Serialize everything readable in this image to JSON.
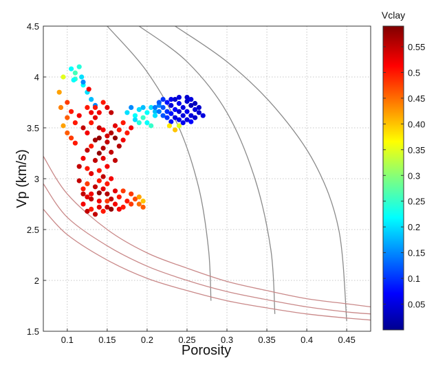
{
  "chart_data": {
    "type": "scatter",
    "xlabel": "Porosity",
    "ylabel": "Vp (km/s)",
    "xlim": [
      0.07,
      0.48
    ],
    "ylim": [
      1.5,
      4.5
    ],
    "x_ticks": [
      "0.1",
      "0.15",
      "0.2",
      "0.25",
      "0.3",
      "0.35",
      "0.4",
      "0.45"
    ],
    "y_ticks": [
      "1.5",
      "2",
      "2.5",
      "3",
      "3.5",
      "4",
      "4.5"
    ],
    "grid": true,
    "colorbar": {
      "title": "Vclay",
      "range": [
        0,
        0.59
      ],
      "ticks": [
        "0.05",
        "0.1",
        "0.15",
        "0.2",
        "0.25",
        "0.3",
        "0.35",
        "0.40",
        "0.45",
        "0.5",
        "0.55"
      ]
    },
    "gray_curves": [
      {
        "points": [
          [
            0.15,
            4.5
          ],
          [
            0.2,
            4.05
          ],
          [
            0.24,
            3.5
          ],
          [
            0.265,
            2.9
          ],
          [
            0.277,
            2.3
          ],
          [
            0.28,
            1.8
          ]
        ]
      },
      {
        "points": [
          [
            0.19,
            4.5
          ],
          [
            0.25,
            4.15
          ],
          [
            0.3,
            3.65
          ],
          [
            0.335,
            3.0
          ],
          [
            0.355,
            2.3
          ],
          [
            0.36,
            1.67
          ]
        ]
      },
      {
        "points": [
          [
            0.235,
            4.5
          ],
          [
            0.3,
            4.15
          ],
          [
            0.36,
            3.7
          ],
          [
            0.41,
            3.15
          ],
          [
            0.44,
            2.5
          ],
          [
            0.45,
            1.6
          ]
        ]
      }
    ],
    "red_curves": [
      {
        "points": [
          [
            0.07,
            3.22
          ],
          [
            0.1,
            2.85
          ],
          [
            0.15,
            2.5
          ],
          [
            0.2,
            2.27
          ],
          [
            0.25,
            2.12
          ],
          [
            0.3,
            1.99
          ],
          [
            0.35,
            1.9
          ],
          [
            0.4,
            1.82
          ],
          [
            0.45,
            1.77
          ],
          [
            0.48,
            1.74
          ]
        ]
      },
      {
        "points": [
          [
            0.07,
            2.95
          ],
          [
            0.1,
            2.62
          ],
          [
            0.15,
            2.34
          ],
          [
            0.2,
            2.14
          ],
          [
            0.25,
            2.0
          ],
          [
            0.3,
            1.89
          ],
          [
            0.35,
            1.81
          ],
          [
            0.4,
            1.74
          ],
          [
            0.45,
            1.69
          ],
          [
            0.48,
            1.67
          ]
        ]
      },
      {
        "points": [
          [
            0.07,
            2.7
          ],
          [
            0.1,
            2.45
          ],
          [
            0.15,
            2.2
          ],
          [
            0.2,
            2.02
          ],
          [
            0.25,
            1.9
          ],
          [
            0.3,
            1.8
          ],
          [
            0.35,
            1.73
          ],
          [
            0.4,
            1.67
          ],
          [
            0.45,
            1.63
          ],
          [
            0.48,
            1.61
          ]
        ]
      }
    ],
    "points": [
      [
        0.105,
        4.08,
        0.22
      ],
      [
        0.115,
        4.1,
        0.24
      ],
      [
        0.11,
        4.04,
        0.26
      ],
      [
        0.118,
        4.0,
        0.2
      ],
      [
        0.12,
        3.92,
        0.22
      ],
      [
        0.125,
        3.85,
        0.2
      ],
      [
        0.12,
        3.95,
        0.15
      ],
      [
        0.13,
        3.78,
        0.18
      ],
      [
        0.135,
        3.72,
        0.15
      ],
      [
        0.127,
        3.88,
        0.52
      ],
      [
        0.11,
        3.98,
        0.25
      ],
      [
        0.095,
        4.0,
        0.35
      ],
      [
        0.108,
        3.97,
        0.22
      ],
      [
        0.09,
        3.85,
        0.42
      ],
      [
        0.092,
        3.7,
        0.44
      ],
      [
        0.1,
        3.6,
        0.46
      ],
      [
        0.095,
        3.52,
        0.42
      ],
      [
        0.1,
        3.45,
        0.46
      ],
      [
        0.105,
        3.4,
        0.48
      ],
      [
        0.11,
        3.35,
        0.5
      ],
      [
        0.1,
        3.75,
        0.48
      ],
      [
        0.105,
        3.66,
        0.5
      ],
      [
        0.11,
        3.55,
        0.5
      ],
      [
        0.115,
        3.62,
        0.52
      ],
      [
        0.12,
        3.5,
        0.55
      ],
      [
        0.125,
        3.45,
        0.52
      ],
      [
        0.13,
        3.55,
        0.5
      ],
      [
        0.135,
        3.6,
        0.53
      ],
      [
        0.14,
        3.5,
        0.55
      ],
      [
        0.145,
        3.48,
        0.52
      ],
      [
        0.14,
        3.4,
        0.58
      ],
      [
        0.135,
        3.38,
        0.57
      ],
      [
        0.13,
        3.32,
        0.5
      ],
      [
        0.125,
        3.28,
        0.55
      ],
      [
        0.145,
        3.3,
        0.56
      ],
      [
        0.15,
        3.36,
        0.55
      ],
      [
        0.15,
        3.42,
        0.54
      ],
      [
        0.155,
        3.45,
        0.56
      ],
      [
        0.14,
        3.25,
        0.58
      ],
      [
        0.16,
        3.52,
        0.53
      ],
      [
        0.165,
        3.48,
        0.5
      ],
      [
        0.17,
        3.38,
        0.52
      ],
      [
        0.175,
        3.45,
        0.5
      ],
      [
        0.18,
        3.5,
        0.52
      ],
      [
        0.17,
        3.55,
        0.5
      ],
      [
        0.135,
        3.7,
        0.5
      ],
      [
        0.14,
        3.65,
        0.52
      ],
      [
        0.145,
        3.75,
        0.5
      ],
      [
        0.15,
        3.7,
        0.53
      ],
      [
        0.155,
        3.65,
        0.55
      ],
      [
        0.13,
        3.65,
        0.52
      ],
      [
        0.125,
        3.7,
        0.5
      ],
      [
        0.16,
        3.4,
        0.58
      ],
      [
        0.165,
        3.32,
        0.56
      ],
      [
        0.155,
        3.26,
        0.55
      ],
      [
        0.145,
        3.2,
        0.53
      ],
      [
        0.135,
        3.18,
        0.55
      ],
      [
        0.12,
        3.2,
        0.52
      ],
      [
        0.115,
        3.12,
        0.55
      ],
      [
        0.125,
        3.1,
        0.5
      ],
      [
        0.13,
        3.05,
        0.53
      ],
      [
        0.14,
        3.08,
        0.5
      ],
      [
        0.15,
        3.12,
        0.52
      ],
      [
        0.16,
        3.18,
        0.55
      ],
      [
        0.115,
        2.98,
        0.55
      ],
      [
        0.12,
        2.9,
        0.5
      ],
      [
        0.125,
        2.95,
        0.48
      ],
      [
        0.13,
        2.85,
        0.52
      ],
      [
        0.135,
        2.92,
        0.55
      ],
      [
        0.14,
        2.98,
        0.5
      ],
      [
        0.145,
        2.9,
        0.53
      ],
      [
        0.15,
        2.95,
        0.5
      ],
      [
        0.155,
        3.0,
        0.52
      ],
      [
        0.145,
        3.02,
        0.55
      ],
      [
        0.14,
        2.86,
        0.58
      ],
      [
        0.15,
        2.85,
        0.56
      ],
      [
        0.155,
        2.8,
        0.55
      ],
      [
        0.16,
        2.88,
        0.53
      ],
      [
        0.165,
        2.82,
        0.5
      ],
      [
        0.17,
        2.88,
        0.48
      ],
      [
        0.175,
        2.78,
        0.5
      ],
      [
        0.18,
        2.85,
        0.48
      ],
      [
        0.185,
        2.8,
        0.47
      ],
      [
        0.19,
        2.75,
        0.45
      ],
      [
        0.195,
        2.72,
        0.46
      ],
      [
        0.19,
        2.82,
        0.42
      ],
      [
        0.195,
        2.78,
        0.4
      ],
      [
        0.18,
        2.75,
        0.48
      ],
      [
        0.17,
        2.72,
        0.5
      ],
      [
        0.165,
        2.7,
        0.52
      ],
      [
        0.12,
        2.75,
        0.52
      ],
      [
        0.125,
        2.68,
        0.55
      ],
      [
        0.13,
        2.7,
        0.5
      ],
      [
        0.135,
        2.65,
        0.55
      ],
      [
        0.14,
        2.72,
        0.53
      ],
      [
        0.145,
        2.68,
        0.5
      ],
      [
        0.15,
        2.72,
        0.55
      ],
      [
        0.155,
        2.7,
        0.58
      ],
      [
        0.16,
        2.75,
        0.52
      ],
      [
        0.13,
        2.8,
        0.55
      ],
      [
        0.125,
        2.82,
        0.53
      ],
      [
        0.14,
        2.78,
        0.52
      ],
      [
        0.12,
        2.85,
        0.55
      ],
      [
        0.15,
        2.78,
        0.48
      ],
      [
        0.175,
        3.65,
        0.2
      ],
      [
        0.18,
        3.7,
        0.15
      ],
      [
        0.185,
        3.62,
        0.22
      ],
      [
        0.19,
        3.68,
        0.2
      ],
      [
        0.195,
        3.6,
        0.25
      ],
      [
        0.2,
        3.65,
        0.22
      ],
      [
        0.205,
        3.7,
        0.2
      ],
      [
        0.21,
        3.66,
        0.18
      ],
      [
        0.215,
        3.72,
        0.15
      ],
      [
        0.21,
        3.62,
        0.2
      ],
      [
        0.2,
        3.55,
        0.22
      ],
      [
        0.205,
        3.52,
        0.25
      ],
      [
        0.19,
        3.55,
        0.24
      ],
      [
        0.195,
        3.7,
        0.18
      ],
      [
        0.185,
        3.58,
        0.2
      ],
      [
        0.22,
        3.7,
        0.12
      ],
      [
        0.225,
        3.75,
        0.08
      ],
      [
        0.23,
        3.72,
        0.05
      ],
      [
        0.235,
        3.78,
        0.04
      ],
      [
        0.24,
        3.74,
        0.06
      ],
      [
        0.245,
        3.7,
        0.05
      ],
      [
        0.25,
        3.76,
        0.04
      ],
      [
        0.255,
        3.72,
        0.03
      ],
      [
        0.26,
        3.68,
        0.05
      ],
      [
        0.265,
        3.65,
        0.04
      ],
      [
        0.255,
        3.62,
        0.05
      ],
      [
        0.25,
        3.66,
        0.06
      ],
      [
        0.245,
        3.62,
        0.05
      ],
      [
        0.24,
        3.66,
        0.04
      ],
      [
        0.235,
        3.68,
        0.07
      ],
      [
        0.23,
        3.64,
        0.08
      ],
      [
        0.225,
        3.66,
        0.1
      ],
      [
        0.22,
        3.62,
        0.12
      ],
      [
        0.215,
        3.66,
        0.14
      ],
      [
        0.23,
        3.78,
        0.06
      ],
      [
        0.24,
        3.8,
        0.05
      ],
      [
        0.25,
        3.8,
        0.04
      ],
      [
        0.255,
        3.78,
        0.05
      ],
      [
        0.26,
        3.74,
        0.03
      ],
      [
        0.265,
        3.7,
        0.04
      ],
      [
        0.27,
        3.62,
        0.05
      ],
      [
        0.26,
        3.6,
        0.04
      ],
      [
        0.25,
        3.58,
        0.05
      ],
      [
        0.24,
        3.58,
        0.06
      ],
      [
        0.235,
        3.6,
        0.05
      ],
      [
        0.245,
        3.55,
        0.06
      ],
      [
        0.255,
        3.56,
        0.07
      ],
      [
        0.23,
        3.56,
        0.08
      ],
      [
        0.225,
        3.6,
        0.1
      ],
      [
        0.22,
        3.78,
        0.1
      ],
      [
        0.215,
        3.75,
        0.12
      ],
      [
        0.21,
        3.7,
        0.14
      ],
      [
        0.228,
        3.52,
        0.38
      ],
      [
        0.235,
        3.48,
        0.4
      ],
      [
        0.24,
        3.52,
        0.35
      ]
    ]
  }
}
